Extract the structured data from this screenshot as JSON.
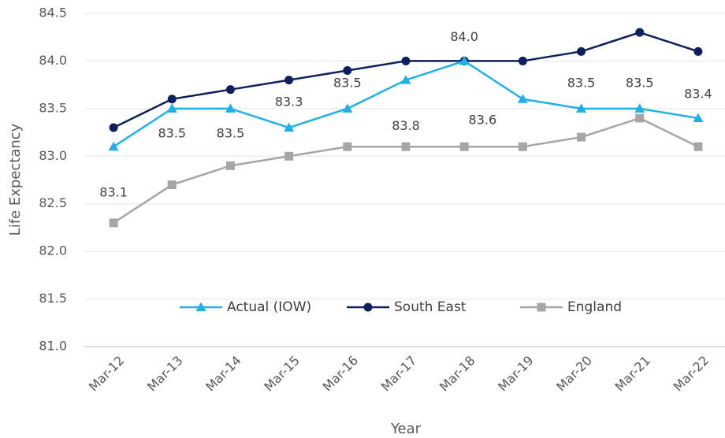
{
  "chart_data": {
    "type": "line",
    "x_label": "Year",
    "y_label": "Life Expectancy",
    "categories": [
      "Mar-12",
      "Mar-13",
      "Mar-14",
      "Mar-15",
      "Mar-16",
      "Mar-17",
      "Mar-18",
      "Mar-19",
      "Mar-20",
      "Mar-21",
      "Mar-22"
    ],
    "series": [
      {
        "name": "Actual (IOW)",
        "color": "#1fb0e8",
        "marker": "triangle",
        "values": [
          83.1,
          83.5,
          83.5,
          83.3,
          83.5,
          83.8,
          84.0,
          83.6,
          83.5,
          83.5,
          83.4
        ],
        "value_labels": [
          "83.1",
          "83.5",
          "83.5",
          "83.3",
          "83.5",
          "83.8",
          "84.0",
          "83.6",
          "83.5",
          "83.5",
          "83.4"
        ]
      },
      {
        "name": "South East",
        "color": "#0d1f5c",
        "marker": "circle",
        "values": [
          83.3,
          83.6,
          83.7,
          83.8,
          83.9,
          84.0,
          84.0,
          84.0,
          84.1,
          84.3,
          84.1
        ]
      },
      {
        "name": "England",
        "color": "#a6a6a6",
        "marker": "square",
        "values": [
          82.3,
          82.7,
          82.9,
          83.0,
          83.1,
          83.1,
          83.1,
          83.1,
          83.2,
          83.4,
          83.1
        ]
      }
    ],
    "ylim": [
      81,
      84.5
    ],
    "yticks": [
      {
        "value": 81,
        "label": "81.0"
      },
      81.5,
      {
        "value": 82,
        "label": "82.0"
      },
      82.5,
      {
        "value": 83,
        "label": "83.0"
      },
      83.5,
      {
        "value": 84,
        "label": "84.0"
      },
      84.5
    ],
    "grid": true,
    "legend": "bottom"
  }
}
